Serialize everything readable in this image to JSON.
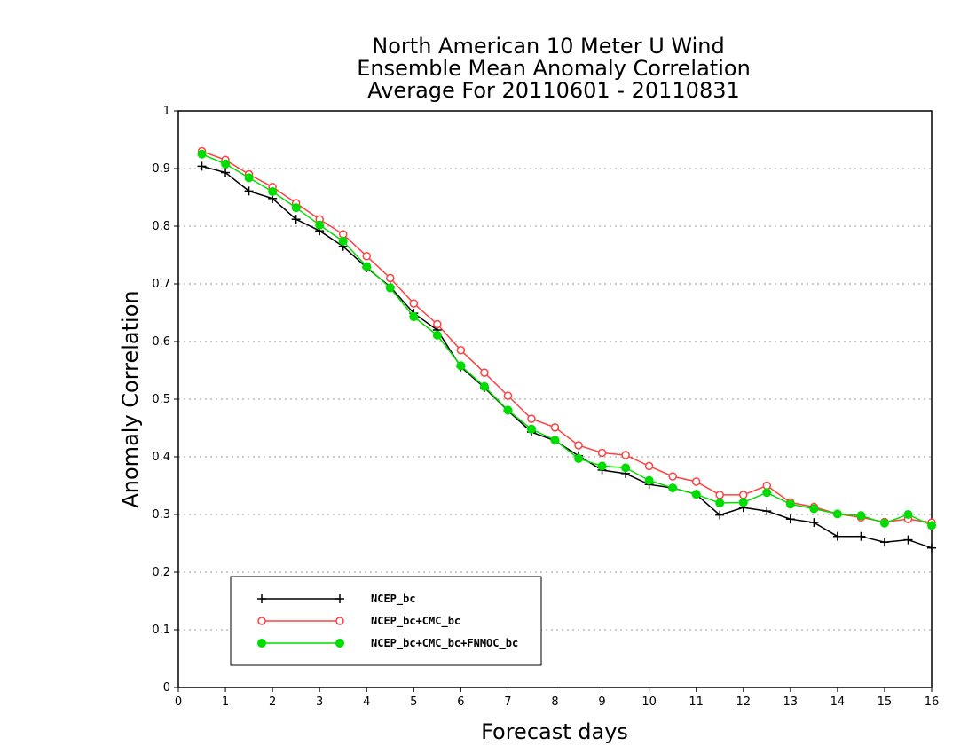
{
  "chart_data": {
    "type": "line",
    "title": [
      "North American 10 Meter U Wind",
      "Ensemble Mean Anomaly Correlation",
      "Average For 20110601 - 20110831"
    ],
    "xlabel": "Forecast days",
    "ylabel": "Anomaly Correlation",
    "xlim": [
      0,
      16
    ],
    "ylim": [
      0,
      1
    ],
    "x_ticks": [
      "0",
      "1",
      "2",
      "3",
      "4",
      "5",
      "6",
      "7",
      "8",
      "9",
      "10",
      "11",
      "12",
      "13",
      "14",
      "15",
      "16"
    ],
    "y_ticks": [
      "0",
      "0.1",
      "0.2",
      "0.3",
      "0.4",
      "0.5",
      "0.6",
      "0.7",
      "0.8",
      "0.9",
      "1"
    ],
    "grid": "horizontal dotted",
    "legend_position": "bottom-left",
    "x": [
      0.5,
      1,
      1.5,
      2,
      2.5,
      3,
      3.5,
      4,
      4.5,
      5,
      5.5,
      6,
      6.5,
      7,
      7.5,
      8,
      8.5,
      9,
      9.5,
      10,
      10.5,
      11,
      11.5,
      12,
      12.5,
      13,
      13.5,
      14,
      14.5,
      15,
      15.5,
      16
    ],
    "series": [
      {
        "name": "NCEP_bc",
        "color": "#000000",
        "marker": "plus",
        "values": [
          0.904,
          0.893,
          0.861,
          0.848,
          0.812,
          0.792,
          0.765,
          0.728,
          0.695,
          0.649,
          0.62,
          0.556,
          0.52,
          0.48,
          0.443,
          0.428,
          0.402,
          0.377,
          0.371,
          0.352,
          0.346,
          0.335,
          0.299,
          0.312,
          0.306,
          0.292,
          0.286,
          0.262,
          0.262,
          0.252,
          0.256,
          0.242
        ]
      },
      {
        "name": "NCEP_bc+CMC_bc",
        "color": "#ff4040",
        "marker": "open-circle",
        "values": [
          0.93,
          0.915,
          0.89,
          0.868,
          0.84,
          0.812,
          0.786,
          0.748,
          0.71,
          0.666,
          0.63,
          0.585,
          0.546,
          0.506,
          0.466,
          0.451,
          0.42,
          0.407,
          0.403,
          0.384,
          0.366,
          0.357,
          0.334,
          0.334,
          0.35,
          0.321,
          0.313,
          0.301,
          0.295,
          0.287,
          0.292,
          0.286
        ]
      },
      {
        "name": "NCEP_bc+CMC_bc+FNMOC_bc",
        "color": "#00dd00",
        "marker": "filled-circle",
        "values": [
          0.925,
          0.908,
          0.884,
          0.86,
          0.832,
          0.802,
          0.774,
          0.73,
          0.693,
          0.643,
          0.611,
          0.558,
          0.522,
          0.481,
          0.448,
          0.429,
          0.397,
          0.384,
          0.381,
          0.359,
          0.346,
          0.335,
          0.32,
          0.321,
          0.338,
          0.318,
          0.31,
          0.301,
          0.298,
          0.285,
          0.3,
          0.281
        ]
      }
    ]
  }
}
